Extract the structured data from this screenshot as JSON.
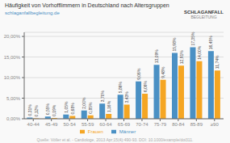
{
  "chart_data": {
    "type": "bar",
    "title": "Häufigkeit von Vorhofflimmern in Deutschland nach Altersgruppen",
    "subtitle": "schlaganfallbegleitung.de",
    "annotations": [
      "Quelle: Völler et al. - Cardiologe, 2013 Apr;15(4):490-93. DOI: 10.1000/example/doi311.",
      "SCHLAGANFALL",
      "BEGLEITUNG"
    ],
    "categories": [
      "40-44",
      "45-49",
      "50-54",
      "55-59",
      "60-64",
      "65-69",
      "70-74",
      "75-79",
      "80-84",
      "85-89",
      "≥90"
    ],
    "series": [
      {
        "name": "Männer",
        "color": "#4a90c4",
        "values": [
          0.31,
          0.55,
          1.05,
          2.0,
          3.7,
          5.86,
          9.06,
          13.09,
          15.98,
          17.35,
          16.45
        ],
        "value_labels": [
          "0,31%",
          "0,55%",
          "1,05%",
          "2,00%",
          "3,70%",
          "5,86%",
          "9,06%",
          "13,09%",
          "15,98%",
          "17,35%",
          "16,45%"
        ]
      },
      {
        "name": "Frauen",
        "color": "#f5a623",
        "values": [
          0.12,
          0.19,
          0.68,
          0.85,
          1.16,
          3.43,
          6.06,
          9.48,
          12.91,
          14.0,
          11.74
        ],
        "value_labels": [
          "0,12%",
          "0,19%",
          "0,68%",
          "0,85%",
          "1,16%",
          "3,43%",
          "6,06%",
          "9,48%",
          "12,91%",
          "14,00%",
          "11,74%"
        ]
      }
    ],
    "ylim": [
      0,
      21
    ],
    "yticks": [
      {
        "value": 0,
        "label": "0,00%"
      },
      {
        "value": 5,
        "label": "5,00%"
      },
      {
        "value": 10,
        "label": "10,00%"
      },
      {
        "value": 15,
        "label": "15,00%"
      },
      {
        "value": 20,
        "label": "20,00%"
      }
    ],
    "grid": true,
    "data_labels": true,
    "legend": "bottom"
  }
}
